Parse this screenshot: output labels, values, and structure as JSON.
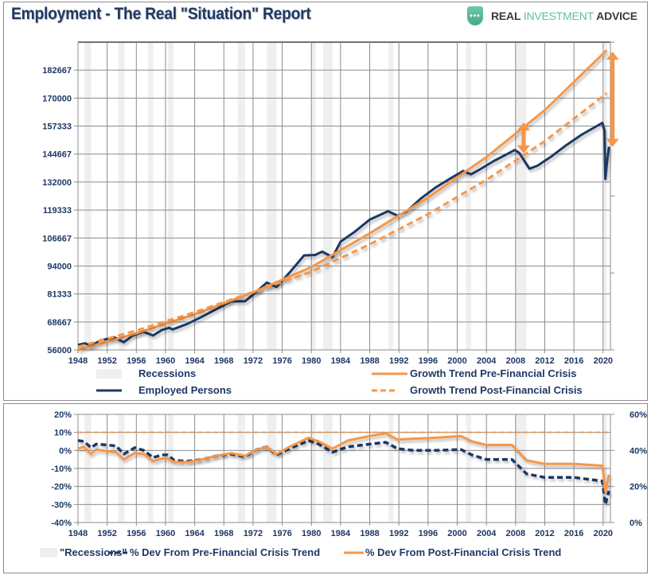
{
  "header": {
    "title": "Employment - The Real \"Situation\" Report",
    "logo": {
      "icon": "shield-dots-icon",
      "word1": "REAL ",
      "word2": "INVESTMENT",
      "word3": " ADVICE"
    }
  },
  "colors": {
    "navy": "#1f3864",
    "orange": "#f79646",
    "recession": "#efefef",
    "grid": "#8c8c8c",
    "brand_green": "#5fbf9f"
  },
  "chart_data": [
    {
      "type": "line",
      "title": "Employment - The Real \"Situation\" Report",
      "xlabel": "",
      "ylabel": "",
      "xlim": [
        1948,
        2021
      ],
      "ylim": [
        56000,
        195333
      ],
      "yticks": [
        "56000",
        "68667",
        "81333",
        "94000",
        "106667",
        "119333",
        "132000",
        "144667",
        "157333",
        "170000",
        "182667"
      ],
      "ytick_values": [
        56000,
        68667,
        81333,
        94000,
        106667,
        119333,
        132000,
        144667,
        157333,
        170000,
        182667
      ],
      "xticks": [
        "1948",
        "1952",
        "1956",
        "1960",
        "1964",
        "1968",
        "1972",
        "1976",
        "1980",
        "1984",
        "1988",
        "1992",
        "1996",
        "2000",
        "2004",
        "2008",
        "2012",
        "2016",
        "2020"
      ],
      "grid": true,
      "legend": {
        "placement": "bottom",
        "items": [
          {
            "label": "Recessions",
            "style": "band"
          },
          {
            "label": "Growth Trend Pre-Financial Crisis",
            "style": "solid-orange"
          },
          {
            "label": "Employed Persons",
            "style": "solid-navy"
          },
          {
            "label": "Growth Trend Post-Financial Crisis",
            "style": "dashed-orange"
          }
        ]
      },
      "recessions": [
        [
          1948.9,
          1949.8
        ],
        [
          1953.5,
          1954.4
        ],
        [
          1957.6,
          1958.3
        ],
        [
          1960.3,
          1961.1
        ],
        [
          1969.9,
          1970.9
        ],
        [
          1973.9,
          1975.2
        ],
        [
          1980.0,
          1980.6
        ],
        [
          1981.6,
          1982.9
        ],
        [
          1990.6,
          1991.2
        ],
        [
          2001.2,
          2001.9
        ],
        [
          2007.9,
          2009.5
        ],
        [
          2020.1,
          2020.5
        ]
      ],
      "series": [
        {
          "name": "Employed Persons",
          "style": "solid-navy",
          "x": [
            1948,
            1949,
            1949.8,
            1951,
            1953,
            1954.3,
            1955.5,
            1957,
            1958.3,
            1959.5,
            1960.5,
            1961,
            1963,
            1965,
            1967,
            1969,
            1970.9,
            1972,
            1973.9,
            1975.2,
            1977,
            1979,
            1980.5,
            1981.5,
            1982.9,
            1984,
            1986,
            1988,
            1990.5,
            1991.8,
            1993,
            1995,
            1997,
            1999,
            2000.8,
            2001.9,
            2003,
            2005,
            2007.9,
            2008.5,
            2009.9,
            2011,
            2013,
            2015,
            2017,
            2019.9,
            2020.2,
            2020.3,
            2020.5,
            2020.8
          ],
          "y": [
            58300,
            59000,
            57700,
            60300,
            61700,
            59500,
            62500,
            64200,
            62500,
            65000,
            66000,
            65300,
            67800,
            71000,
            74500,
            78000,
            78000,
            81000,
            86500,
            84500,
            91000,
            98800,
            99000,
            100500,
            98000,
            105000,
            109600,
            115000,
            118800,
            116800,
            118500,
            124500,
            129500,
            133500,
            137000,
            135500,
            137500,
            141500,
            146500,
            145200,
            138000,
            139400,
            143800,
            148800,
            153300,
            158800,
            155000,
            133400,
            140000,
            148000
          ]
        },
        {
          "name": "Growth Trend Pre-Financial Crisis",
          "style": "solid-orange",
          "x": [
            1948,
            1956,
            1964,
            1972,
            1980,
            1988,
            1996,
            2004,
            2012,
            2020.5
          ],
          "y": [
            56000,
            63500,
            72200,
            82000,
            93500,
            108800,
            125000,
            143300,
            164500,
            191700
          ]
        },
        {
          "name": "Growth Trend Post-Financial Crisis",
          "style": "dashed-orange",
          "x": [
            1948,
            1956,
            1964,
            1972,
            1980,
            1988,
            1996,
            2004,
            2012,
            2020.5
          ],
          "y": [
            57400,
            64800,
            73100,
            82200,
            91400,
            103800,
            117500,
            133000,
            150500,
            172200
          ]
        }
      ],
      "annotations": [
        {
          "type": "double-arrow",
          "x": 2009.1,
          "y_from": 145000,
          "y_to": 159000,
          "color": "#f79646"
        },
        {
          "type": "double-arrow",
          "x": 2021.3,
          "y_from": 148000,
          "y_to": 191000,
          "color": "#f79646"
        }
      ]
    },
    {
      "type": "line",
      "title": "",
      "xlim": [
        1948,
        2021
      ],
      "ylim": [
        -40,
        20
      ],
      "ylim_right": [
        0,
        60
      ],
      "yticks": [
        "20%",
        "10%",
        "0%",
        "-10%",
        "-20%",
        "-30%",
        "-40%"
      ],
      "ytick_values": [
        20,
        10,
        0,
        -10,
        -20,
        -30,
        -40
      ],
      "yticks_right": [
        "60%",
        "40%",
        "20%",
        "0%"
      ],
      "ytick_right_values": [
        60,
        40,
        20,
        0
      ],
      "xticks": [
        "1948",
        "1952",
        "1956",
        "1960",
        "1964",
        "1968",
        "1972",
        "1976",
        "1980",
        "1984",
        "1988",
        "1992",
        "1996",
        "2000",
        "2004",
        "2008",
        "2012",
        "2016",
        "2020"
      ],
      "grid": true,
      "legend": {
        "placement": "bottom",
        "items": [
          {
            "label": "\"Recessions\"",
            "style": "band"
          },
          {
            "label": "% Dev From Pre-Financial Crisis Trend",
            "style": "dashed-navy"
          },
          {
            "label": "% Dev From Post-Financial Crisis Trend",
            "style": "solid-orange"
          }
        ]
      },
      "recessions": [
        [
          1948.9,
          1949.8
        ],
        [
          1953.5,
          1954.4
        ],
        [
          1957.6,
          1958.3
        ],
        [
          1960.3,
          1961.1
        ],
        [
          1969.9,
          1970.9
        ],
        [
          1973.9,
          1975.2
        ],
        [
          1980.0,
          1980.6
        ],
        [
          1981.6,
          1982.9
        ],
        [
          1990.6,
          1991.2
        ],
        [
          2001.2,
          2001.9
        ],
        [
          2007.9,
          2009.5
        ],
        [
          2020.1,
          2020.5
        ]
      ],
      "reference_line": {
        "value": 10,
        "style": "dashed-orange"
      },
      "series": [
        {
          "name": "% Dev From Pre-Financial Crisis Trend",
          "style": "dashed-navy",
          "x": [
            1948,
            1948.8,
            1949.8,
            1950.5,
            1952,
            1953.2,
            1954.3,
            1955.8,
            1957,
            1958.3,
            1959.5,
            1960.3,
            1961.2,
            1963,
            1965,
            1967,
            1969,
            1970.9,
            1972.5,
            1973.9,
            1975.2,
            1977,
            1979.6,
            1981,
            1982.9,
            1985,
            1988,
            1990.2,
            1991.8,
            1994,
            1997,
            2000.5,
            2002,
            2004,
            2007.5,
            2009.5,
            2012,
            2016,
            2019.9,
            2020.3,
            2020.8
          ],
          "y": [
            5.5,
            5.0,
            1.5,
            3.5,
            3.0,
            2.5,
            -2.0,
            1.5,
            0.0,
            -4.0,
            -2.5,
            -2.5,
            -5.5,
            -6.0,
            -5.0,
            -3.0,
            -2.0,
            -3.5,
            0.5,
            2.0,
            -2.5,
            1.0,
            5.5,
            3.5,
            -1.0,
            2.0,
            3.5,
            4.5,
            1.0,
            0.0,
            0.0,
            0.5,
            -2.5,
            -5.0,
            -5.0,
            -13.0,
            -15.0,
            -15.0,
            -17.0,
            -30.0,
            -22.5
          ]
        },
        {
          "name": "% Dev From Post-Financial Crisis Trend",
          "style": "solid-orange",
          "x": [
            1948,
            1948.8,
            1949.8,
            1950.5,
            1952,
            1953.2,
            1954.3,
            1955.8,
            1957,
            1958.3,
            1959.5,
            1960.3,
            1961.2,
            1963,
            1965,
            1967,
            1969,
            1970.9,
            1972.5,
            1973.9,
            1975.2,
            1977,
            1979.6,
            1981,
            1982.9,
            1985,
            1988,
            1990.2,
            1991.8,
            1994,
            1997,
            2000.5,
            2002,
            2004,
            2007.5,
            2009.5,
            2012,
            2016,
            2019.9,
            2020.3,
            2020.8
          ],
          "y": [
            1.0,
            2.0,
            -2.0,
            0.5,
            -0.5,
            -1.0,
            -5.0,
            -1.5,
            -2.0,
            -6.0,
            -4.5,
            -4.5,
            -6.5,
            -6.5,
            -5.0,
            -3.0,
            -1.5,
            -3.0,
            0.5,
            2.0,
            -2.0,
            2.0,
            7.0,
            5.0,
            1.0,
            5.5,
            8.0,
            9.5,
            6.0,
            6.5,
            7.0,
            8.0,
            5.0,
            3.0,
            3.0,
            -5.5,
            -7.5,
            -7.5,
            -8.5,
            -23.0,
            -13.5
          ]
        }
      ]
    }
  ]
}
